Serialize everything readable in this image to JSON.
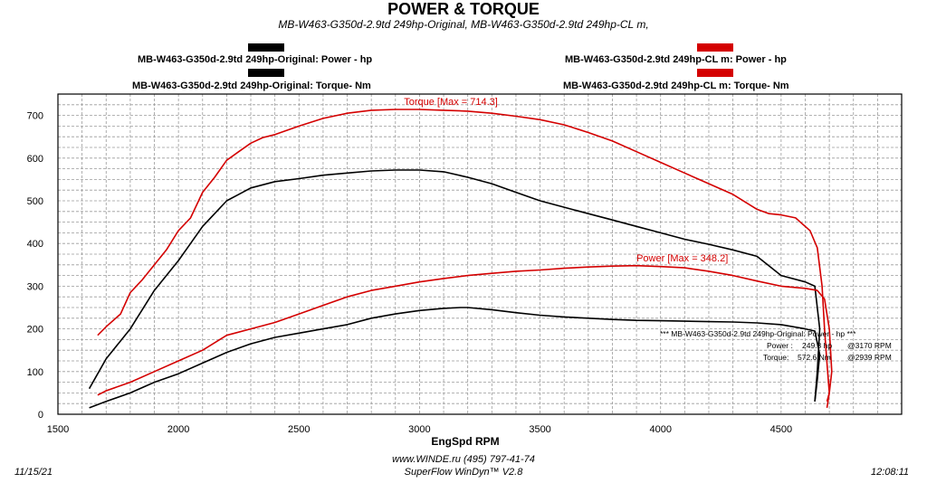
{
  "header": {
    "title": "POWER & TORQUE",
    "subtitle": "MB-W463-G350d-2.9td 249hp-Original, MB-W463-G350d-2.9td 249hp-CL m,"
  },
  "legend": {
    "orig_power": "MB-W463-G350d-2.9td 249hp-Original: Power -  hp",
    "orig_torque": "MB-W463-G350d-2.9td 249hp-Original: Torque-  Nm",
    "cl_power": "MB-W463-G350d-2.9td 249hp-CL m: Power -  hp",
    "cl_torque": "MB-W463-G350d-2.9td 249hp-CL m: Torque-  Nm"
  },
  "summary": {
    "header": "*** MB-W463-G350d-2.9td 249hp-Original: Power -  hp  ***",
    "power_label": "Power :",
    "power_value": "249.8 hp",
    "power_rpm": "@3170 RPM",
    "torque_label": "Torque:",
    "torque_value": "572.6 Nm",
    "torque_rpm": "@2939 RPM"
  },
  "footer": {
    "url": "www.WINDE.ru  (495) 797-41-74",
    "software": "SuperFlow WinDyn™ V2.8",
    "date": "11/15/21",
    "time": "12:08:11"
  },
  "colors": {
    "original": "#000000",
    "cl": "#d40000",
    "grid": "#9a9a9a"
  },
  "chart_data": {
    "type": "line",
    "title": "POWER & TORQUE",
    "xlabel": "EngSpd  RPM",
    "ylabel": "",
    "xlim": [
      1500,
      5000
    ],
    "ylim": [
      0,
      750
    ],
    "x_ticks": [
      1500,
      2000,
      2500,
      3000,
      3500,
      4000,
      4500
    ],
    "y_ticks": [
      0,
      100,
      200,
      300,
      400,
      500,
      600,
      700
    ],
    "grid": true,
    "annotations": [
      {
        "text": "Torque [Max = 714.3]",
        "x": 3130,
        "y": 725
      },
      {
        "text": "Power  [Max = 348.2]",
        "x": 4090,
        "y": 358
      }
    ],
    "series": [
      {
        "name": "MB-W463-G350d-2.9td 249hp-CL m: Torque-  Nm",
        "color": "#d40000",
        "points": [
          [
            1665,
            185
          ],
          [
            1700,
            205
          ],
          [
            1760,
            235
          ],
          [
            1800,
            285
          ],
          [
            1850,
            315
          ],
          [
            1900,
            350
          ],
          [
            1950,
            385
          ],
          [
            2000,
            430
          ],
          [
            2050,
            460
          ],
          [
            2100,
            520
          ],
          [
            2150,
            555
          ],
          [
            2200,
            595
          ],
          [
            2250,
            615
          ],
          [
            2300,
            635
          ],
          [
            2350,
            648
          ],
          [
            2400,
            655
          ],
          [
            2500,
            675
          ],
          [
            2600,
            693
          ],
          [
            2700,
            705
          ],
          [
            2800,
            712
          ],
          [
            2900,
            714
          ],
          [
            3000,
            714
          ],
          [
            3100,
            712
          ],
          [
            3200,
            710
          ],
          [
            3300,
            705
          ],
          [
            3400,
            698
          ],
          [
            3500,
            690
          ],
          [
            3600,
            678
          ],
          [
            3700,
            660
          ],
          [
            3800,
            640
          ],
          [
            3900,
            615
          ],
          [
            4000,
            590
          ],
          [
            4100,
            565
          ],
          [
            4200,
            540
          ],
          [
            4300,
            515
          ],
          [
            4400,
            480
          ],
          [
            4450,
            470
          ],
          [
            4500,
            467
          ],
          [
            4560,
            460
          ],
          [
            4620,
            430
          ],
          [
            4650,
            390
          ],
          [
            4670,
            300
          ],
          [
            4680,
            200
          ],
          [
            4690,
            120
          ],
          [
            4700,
            50
          ],
          [
            4690,
            15
          ]
        ]
      },
      {
        "name": "MB-W463-G350d-2.9td 249hp-Original: Torque-  Nm",
        "color": "#000000",
        "points": [
          [
            1630,
            60
          ],
          [
            1700,
            130
          ],
          [
            1800,
            200
          ],
          [
            1900,
            290
          ],
          [
            2000,
            360
          ],
          [
            2050,
            400
          ],
          [
            2100,
            440
          ],
          [
            2150,
            470
          ],
          [
            2200,
            500
          ],
          [
            2250,
            515
          ],
          [
            2300,
            530
          ],
          [
            2400,
            545
          ],
          [
            2500,
            552
          ],
          [
            2600,
            560
          ],
          [
            2700,
            565
          ],
          [
            2800,
            570
          ],
          [
            2900,
            572
          ],
          [
            3000,
            572
          ],
          [
            3100,
            568
          ],
          [
            3200,
            555
          ],
          [
            3300,
            540
          ],
          [
            3400,
            520
          ],
          [
            3500,
            500
          ],
          [
            3600,
            485
          ],
          [
            3700,
            470
          ],
          [
            3800,
            455
          ],
          [
            3900,
            440
          ],
          [
            4000,
            425
          ],
          [
            4100,
            410
          ],
          [
            4200,
            398
          ],
          [
            4300,
            385
          ],
          [
            4400,
            370
          ],
          [
            4500,
            325
          ],
          [
            4600,
            310
          ],
          [
            4640,
            300
          ],
          [
            4660,
            200
          ],
          [
            4650,
            100
          ],
          [
            4640,
            30
          ]
        ]
      },
      {
        "name": "MB-W463-G350d-2.9td 249hp-CL m: Power -  hp",
        "color": "#d40000",
        "points": [
          [
            1665,
            45
          ],
          [
            1700,
            55
          ],
          [
            1800,
            75
          ],
          [
            1900,
            100
          ],
          [
            2000,
            125
          ],
          [
            2100,
            150
          ],
          [
            2200,
            185
          ],
          [
            2300,
            200
          ],
          [
            2400,
            215
          ],
          [
            2500,
            235
          ],
          [
            2600,
            255
          ],
          [
            2700,
            275
          ],
          [
            2800,
            290
          ],
          [
            2900,
            300
          ],
          [
            3000,
            310
          ],
          [
            3100,
            318
          ],
          [
            3200,
            325
          ],
          [
            3300,
            330
          ],
          [
            3400,
            335
          ],
          [
            3500,
            338
          ],
          [
            3600,
            342
          ],
          [
            3700,
            345
          ],
          [
            3800,
            347
          ],
          [
            3900,
            348
          ],
          [
            4000,
            346
          ],
          [
            4100,
            343
          ],
          [
            4200,
            335
          ],
          [
            4300,
            325
          ],
          [
            4400,
            312
          ],
          [
            4500,
            300
          ],
          [
            4600,
            295
          ],
          [
            4650,
            290
          ],
          [
            4680,
            270
          ],
          [
            4700,
            200
          ],
          [
            4710,
            100
          ],
          [
            4700,
            50
          ],
          [
            4690,
            30
          ]
        ]
      },
      {
        "name": "MB-W463-G350d-2.9td 249hp-Original: Power -  hp",
        "color": "#000000",
        "points": [
          [
            1630,
            15
          ],
          [
            1700,
            30
          ],
          [
            1800,
            50
          ],
          [
            1900,
            75
          ],
          [
            2000,
            95
          ],
          [
            2100,
            120
          ],
          [
            2200,
            145
          ],
          [
            2300,
            165
          ],
          [
            2400,
            180
          ],
          [
            2500,
            190
          ],
          [
            2600,
            200
          ],
          [
            2700,
            210
          ],
          [
            2800,
            225
          ],
          [
            2900,
            235
          ],
          [
            3000,
            243
          ],
          [
            3100,
            248
          ],
          [
            3170,
            250
          ],
          [
            3200,
            250
          ],
          [
            3300,
            245
          ],
          [
            3400,
            238
          ],
          [
            3500,
            232
          ],
          [
            3600,
            228
          ],
          [
            3700,
            225
          ],
          [
            3800,
            222
          ],
          [
            3900,
            220
          ],
          [
            4000,
            219
          ],
          [
            4100,
            218
          ],
          [
            4200,
            217
          ],
          [
            4300,
            216
          ],
          [
            4400,
            214
          ],
          [
            4500,
            210
          ],
          [
            4600,
            200
          ],
          [
            4640,
            195
          ],
          [
            4660,
            140
          ],
          [
            4650,
            80
          ],
          [
            4640,
            30
          ]
        ]
      }
    ]
  }
}
